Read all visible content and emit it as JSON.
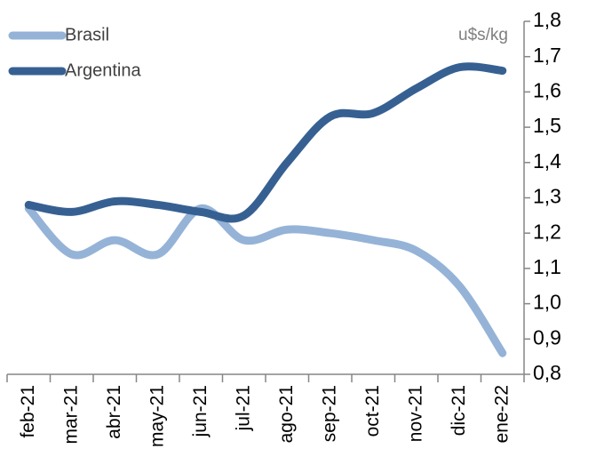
{
  "chart_data": {
    "type": "line",
    "annotation": "u$s/kg",
    "categories": [
      "feb-21",
      "mar-21",
      "abr-21",
      "may-21",
      "jun-21",
      "jul-21",
      "ago-21",
      "sep-21",
      "oct-21",
      "nov-21",
      "dic-21",
      "ene-22"
    ],
    "series": [
      {
        "name": "Brasil",
        "color": "#95b3d7",
        "values": [
          1.27,
          1.14,
          1.18,
          1.14,
          1.27,
          1.18,
          1.21,
          1.2,
          1.18,
          1.15,
          1.05,
          0.86
        ]
      },
      {
        "name": "Argentina",
        "color": "#376092",
        "values": [
          1.28,
          1.26,
          1.29,
          1.28,
          1.26,
          1.25,
          1.4,
          1.53,
          1.54,
          1.61,
          1.67,
          1.66
        ]
      }
    ],
    "ylim": [
      0.8,
      1.8
    ],
    "yticks": [
      {
        "value": 0.8,
        "label": "0,8"
      },
      {
        "value": 0.9,
        "label": "0,9"
      },
      {
        "value": 1.0,
        "label": "1,0"
      },
      {
        "value": 1.1,
        "label": "1,1"
      },
      {
        "value": 1.2,
        "label": "1,2"
      },
      {
        "value": 1.3,
        "label": "1,3"
      },
      {
        "value": 1.4,
        "label": "1,4"
      },
      {
        "value": 1.5,
        "label": "1,5"
      },
      {
        "value": 1.6,
        "label": "1,6"
      },
      {
        "value": 1.7,
        "label": "1,7"
      },
      {
        "value": 1.8,
        "label": "1,8"
      }
    ],
    "y_axis_side": "right",
    "legend": "top-left",
    "smooth": true
  }
}
